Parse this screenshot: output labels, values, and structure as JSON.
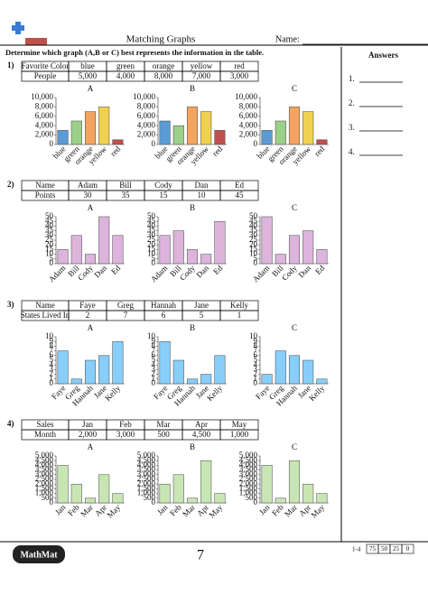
{
  "header": {
    "title": "Matching Graphs",
    "name_label": "Name:"
  },
  "instructions": "Determine which graph (A,B or C) best represents the information in the table.",
  "problems": [
    {
      "number": "1)",
      "table": {
        "rows": [
          [
            "Favorite Color",
            "blue",
            "green",
            "orange",
            "yellow",
            "red"
          ],
          [
            "People",
            "5,000",
            "4,000",
            "8,000",
            "7,000",
            "3,000"
          ]
        ]
      },
      "charts": [
        {
          "type": "bar",
          "label": "A",
          "categories": [
            "blue",
            "green",
            "orange",
            "yellow",
            "red"
          ],
          "values": [
            3000,
            5000,
            7000,
            8000,
            1000
          ],
          "colors": [
            "#5b9bd5",
            "#9bd089",
            "#f4a460",
            "#f0d050",
            "#c0504d"
          ],
          "ylim": [
            0,
            10000
          ],
          "yticks": [
            0,
            {
              "value": 2000,
              "label": "2,000"
            },
            {
              "value": 4000,
              "label": "4,000"
            },
            {
              "value": 6000,
              "label": "6,000"
            },
            {
              "value": 8000,
              "label": "8,000"
            },
            {
              "value": 10000,
              "label": "10,000"
            }
          ]
        },
        {
          "type": "bar",
          "label": "B",
          "categories": [
            "blue",
            "green",
            "orange",
            "yellow",
            "red"
          ],
          "values": [
            5000,
            4000,
            8000,
            7000,
            3000
          ],
          "colors": [
            "#5b9bd5",
            "#9bd089",
            "#f4a460",
            "#f0d050",
            "#c0504d"
          ],
          "ylim": [
            0,
            10000
          ],
          "yticks": [
            0,
            {
              "value": 2000,
              "label": "2,000"
            },
            {
              "value": 4000,
              "label": "4,000"
            },
            {
              "value": 6000,
              "label": "6,000"
            },
            {
              "value": 8000,
              "label": "8,000"
            },
            {
              "value": 10000,
              "label": "10,000"
            }
          ]
        },
        {
          "type": "bar",
          "label": "C",
          "categories": [
            "blue",
            "green",
            "orange",
            "yellow",
            "red"
          ],
          "values": [
            3000,
            5000,
            8000,
            7000,
            1000
          ],
          "colors": [
            "#5b9bd5",
            "#9bd089",
            "#f4a460",
            "#f0d050",
            "#c0504d"
          ],
          "ylim": [
            0,
            10000
          ],
          "yticks": [
            0,
            {
              "value": 2000,
              "label": "2,000"
            },
            {
              "value": 4000,
              "label": "4,000"
            },
            {
              "value": 6000,
              "label": "6,000"
            },
            {
              "value": 8000,
              "label": "8,000"
            },
            {
              "value": 10000,
              "label": "10,000"
            }
          ]
        }
      ]
    },
    {
      "number": "2)",
      "table": {
        "rows": [
          [
            "Name",
            "Adam",
            "Bill",
            "Cody",
            "Dan",
            "Ed"
          ],
          [
            "Points",
            "30",
            "35",
            "15",
            "10",
            "45"
          ]
        ]
      },
      "charts": [
        {
          "type": "bar",
          "label": "A",
          "categories": [
            "Adam",
            "Bill",
            "Cody",
            "Dan",
            "Ed"
          ],
          "values": [
            15,
            30,
            10,
            50,
            30
          ],
          "color": "#dcb4dc",
          "ylim": [
            0,
            50
          ],
          "yticks": [
            0,
            5,
            10,
            15,
            20,
            25,
            30,
            35,
            40,
            45,
            50
          ]
        },
        {
          "type": "bar",
          "label": "B",
          "categories": [
            "Adam",
            "Bill",
            "Cody",
            "Dan",
            "Ed"
          ],
          "values": [
            30,
            35,
            15,
            10,
            45
          ],
          "color": "#dcb4dc",
          "ylim": [
            0,
            50
          ],
          "yticks": [
            0,
            5,
            10,
            15,
            20,
            25,
            30,
            35,
            40,
            45,
            50
          ]
        },
        {
          "type": "bar",
          "label": "C",
          "categories": [
            "Adam",
            "Bill",
            "Cody",
            "Dan",
            "Ed"
          ],
          "values": [
            50,
            10,
            30,
            35,
            15
          ],
          "color": "#dcb4dc",
          "ylim": [
            0,
            50
          ],
          "yticks": [
            0,
            5,
            10,
            15,
            20,
            25,
            30,
            35,
            40,
            45,
            50
          ]
        }
      ]
    },
    {
      "number": "3)",
      "table": {
        "rows": [
          [
            "Name",
            "Faye",
            "Greg",
            "Hannah",
            "Jane",
            "Kelly"
          ],
          [
            "States Lived In",
            "2",
            "7",
            "6",
            "5",
            "1"
          ]
        ]
      },
      "charts": [
        {
          "type": "bar",
          "label": "A",
          "categories": [
            "Faye",
            "Greg",
            "Hannah",
            "Jane",
            "Kelly"
          ],
          "values": [
            7,
            1,
            5,
            6,
            9
          ],
          "color": "#87cefa",
          "ylim": [
            0,
            10
          ],
          "yticks": [
            0,
            1,
            2,
            3,
            4,
            5,
            6,
            7,
            8,
            9,
            10
          ]
        },
        {
          "type": "bar",
          "label": "B",
          "categories": [
            "Faye",
            "Greg",
            "Hannah",
            "Jane",
            "Kelly"
          ],
          "values": [
            9,
            5,
            1,
            2,
            6
          ],
          "color": "#87cefa",
          "ylim": [
            0,
            10
          ],
          "yticks": [
            0,
            1,
            2,
            3,
            4,
            5,
            6,
            7,
            8,
            9,
            10
          ]
        },
        {
          "type": "bar",
          "label": "C",
          "categories": [
            "Faye",
            "Greg",
            "Hannah",
            "Jane",
            "Kelly"
          ],
          "values": [
            2,
            7,
            6,
            5,
            1
          ],
          "color": "#87cefa",
          "ylim": [
            0,
            10
          ],
          "yticks": [
            0,
            1,
            2,
            3,
            4,
            5,
            6,
            7,
            8,
            9,
            10
          ]
        }
      ]
    },
    {
      "number": "4)",
      "table": {
        "rows": [
          [
            "Sales",
            "Jan",
            "Feb",
            "Mar",
            "Apr",
            "May"
          ],
          [
            "Month",
            "2,000",
            "3,000",
            "500",
            "4,500",
            "1,000"
          ]
        ]
      },
      "charts": [
        {
          "type": "bar",
          "label": "A",
          "categories": [
            "Jan",
            "Feb",
            "Mar",
            "Apr",
            "May"
          ],
          "values": [
            4000,
            2000,
            500,
            3000,
            1000
          ],
          "color": "#c8e6b4",
          "ylim": [
            0,
            5000
          ],
          "yticks": [
            0,
            500,
            {
              "value": 1000,
              "label": "1,000"
            },
            {
              "value": 1500,
              "label": "1,500"
            },
            {
              "value": 2000,
              "label": "2,000"
            },
            {
              "value": 2500,
              "label": "2,500"
            },
            {
              "value": 3000,
              "label": "3,000"
            },
            {
              "value": 3500,
              "label": "3,500"
            },
            {
              "value": 4000,
              "label": "4,000"
            },
            {
              "value": 4500,
              "label": "4,500"
            },
            {
              "value": 5000,
              "label": "5,000"
            }
          ]
        },
        {
          "type": "bar",
          "label": "B",
          "categories": [
            "Jan",
            "Feb",
            "Mar",
            "Apr",
            "May"
          ],
          "values": [
            2000,
            3000,
            500,
            4500,
            1000
          ],
          "color": "#c8e6b4",
          "ylim": [
            0,
            5000
          ],
          "yticks": [
            0,
            500,
            {
              "value": 1000,
              "label": "1,000"
            },
            {
              "value": 1500,
              "label": "1,500"
            },
            {
              "value": 2000,
              "label": "2,000"
            },
            {
              "value": 2500,
              "label": "2,500"
            },
            {
              "value": 3000,
              "label": "3,000"
            },
            {
              "value": 3500,
              "label": "3,500"
            },
            {
              "value": 4000,
              "label": "4,000"
            },
            {
              "value": 4500,
              "label": "4,500"
            },
            {
              "value": 5000,
              "label": "5,000"
            }
          ]
        },
        {
          "type": "bar",
          "label": "C",
          "categories": [
            "Jan",
            "Feb",
            "Mar",
            "Apr",
            "May"
          ],
          "values": [
            4000,
            500,
            4500,
            2000,
            1000
          ],
          "color": "#c8e6b4",
          "ylim": [
            0,
            5000
          ],
          "yticks": [
            0,
            500,
            {
              "value": 1000,
              "label": "1,000"
            },
            {
              "value": 1500,
              "label": "1,500"
            },
            {
              "value": 2000,
              "label": "2,000"
            },
            {
              "value": 2500,
              "label": "2,500"
            },
            {
              "value": 3000,
              "label": "3,000"
            },
            {
              "value": 3500,
              "label": "3,500"
            },
            {
              "value": 4000,
              "label": "4,000"
            },
            {
              "value": 4500,
              "label": "4,500"
            },
            {
              "value": 5000,
              "label": "5,000"
            }
          ]
        }
      ]
    }
  ],
  "answers": {
    "title": "Answers",
    "items": [
      "1.",
      "2.",
      "3.",
      "4."
    ]
  },
  "footer": {
    "brand": "MathMat",
    "page": "7",
    "range": "1-4",
    "scores": [
      "75",
      "50",
      "25",
      "0"
    ]
  }
}
